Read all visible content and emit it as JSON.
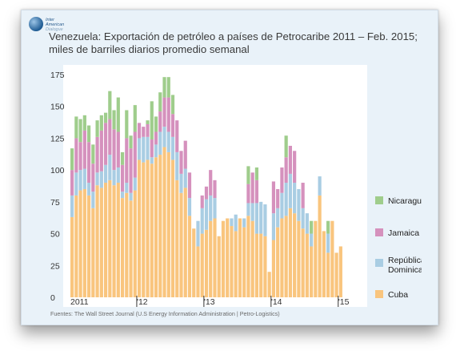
{
  "logo": {
    "line1": "Inter",
    "line2": "American",
    "line3": "Dialogue"
  },
  "title_line1": "Venezuela: Exportación de petróleo a países de Petrocaribe 2011 – Feb. 2015;",
  "title_line2": "miles de barriles diarios promedio semanal",
  "source": "Fuentes: The Wall Street Journal (U.S Energy Information Administration | Petro-Logistics)",
  "chart_data": {
    "type": "bar",
    "stacked": true,
    "ylim": [
      0,
      175
    ],
    "y_ticks": [
      0,
      25,
      50,
      75,
      100,
      125,
      150,
      175
    ],
    "x_tick_labels": [
      {
        "label": "2011",
        "index": 0
      },
      {
        "label": "'12",
        "index": 16
      },
      {
        "label": "'13",
        "index": 32
      },
      {
        "label": "'14",
        "index": 48
      },
      {
        "label": "'15",
        "index": 64
      }
    ],
    "grid": false,
    "legend_position": "right",
    "colors": {
      "Cuba": "#f9c57e",
      "República Dominicana": "#a9cde3",
      "Jamaica": "#d591bd",
      "Nicaragua": "#9fcd8c",
      "panel": "#ffffff",
      "card": "#e9f2f9"
    },
    "series": [
      {
        "name": "Cuba",
        "values": [
          63,
          80,
          84,
          85,
          80,
          70,
          88,
          86,
          90,
          92,
          88,
          90,
          78,
          82,
          76,
          84,
          108,
          106,
          108,
          105,
          110,
          112,
          118,
          114,
          108,
          92,
          82,
          86,
          64,
          54,
          40,
          50,
          53,
          60,
          62,
          48,
          60,
          62,
          56,
          52,
          62,
          55,
          64,
          60,
          50,
          50,
          48,
          20,
          45,
          55,
          62,
          64,
          70,
          66,
          60,
          54,
          50,
          40,
          60,
          80,
          52,
          35,
          60,
          35,
          40
        ]
      },
      {
        "name": "República Dominicana",
        "values": [
          17,
          18,
          16,
          16,
          10,
          13,
          10,
          13,
          14,
          20,
          12,
          12,
          5,
          8,
          6,
          10,
          17,
          20,
          18,
          5,
          10,
          18,
          16,
          16,
          18,
          22,
          15,
          15,
          14,
          0,
          20,
          20,
          24,
          20,
          16,
          0,
          0,
          0,
          6,
          13,
          0,
          7,
          10,
          14,
          24,
          25,
          25,
          0,
          21,
          15,
          20,
          26,
          27,
          24,
          25,
          16,
          16,
          10,
          0,
          15,
          0,
          15,
          0,
          0,
          0
        ]
      },
      {
        "name": "Jamaica",
        "values": [
          20,
          27,
          22,
          30,
          32,
          22,
          28,
          32,
          33,
          28,
          32,
          28,
          21,
          35,
          35,
          36,
          12,
          8,
          10,
          14,
          10,
          16,
          23,
          27,
          18,
          25,
          18,
          22,
          20,
          0,
          0,
          10,
          10,
          20,
          14,
          0,
          0,
          0,
          0,
          0,
          0,
          0,
          15,
          24,
          18,
          0,
          0,
          0,
          25,
          15,
          20,
          20,
          22,
          25,
          0,
          20,
          0,
          0,
          0,
          0,
          0,
          0,
          0,
          0,
          0
        ]
      },
      {
        "name": "Nicaragua",
        "values": [
          17,
          17,
          18,
          12,
          13,
          15,
          13,
          12,
          8,
          22,
          15,
          27,
          10,
          22,
          10,
          21,
          0,
          0,
          3,
          30,
          12,
          15,
          16,
          16,
          15,
          0,
          0,
          0,
          0,
          0,
          0,
          0,
          0,
          0,
          0,
          0,
          0,
          0,
          0,
          0,
          0,
          0,
          14,
          0,
          10,
          0,
          0,
          0,
          0,
          0,
          0,
          17,
          0,
          0,
          0,
          0,
          0,
          10,
          0,
          0,
          0,
          10,
          0,
          0,
          0
        ]
      }
    ]
  }
}
